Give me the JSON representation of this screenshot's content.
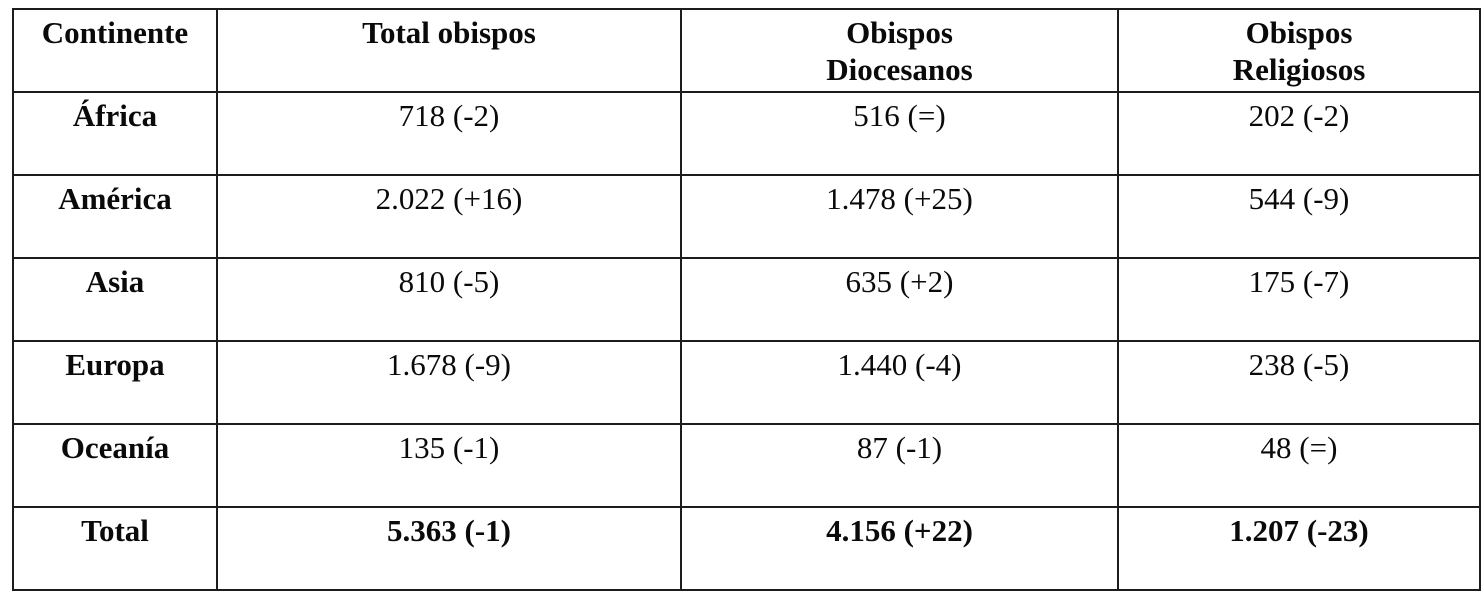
{
  "page": {
    "background_color": "#ffffff",
    "border_color": "#1c1c1c"
  },
  "table": {
    "headers": [
      {
        "label": "Continente"
      },
      {
        "label": "Total obispos"
      },
      {
        "label": "Obispos\nDiocesanos"
      },
      {
        "label": "Obispos\nReligiosos"
      }
    ],
    "rows": [
      {
        "continent": "África",
        "total": "718 (-2)",
        "diocesanos": "516 (=)",
        "religiosos": "202 (-2)"
      },
      {
        "continent": "América",
        "total": "2.022 (+16)",
        "diocesanos": "1.478 (+25)",
        "religiosos": "544 (-9)"
      },
      {
        "continent": "Asia",
        "total": "810 (-5)",
        "diocesanos": "635 (+2)",
        "religiosos": "175 (-7)"
      },
      {
        "continent": "Europa",
        "total": "1.678 (-9)",
        "diocesanos": "1.440 (-4)",
        "religiosos": "238 (-5)"
      },
      {
        "continent": "Oceanía",
        "total": "135 (-1)",
        "diocesanos": "87 (-1)",
        "religiosos": "48 (=)"
      }
    ],
    "total_row": {
      "label": "Total",
      "total": "5.363 (-1)",
      "diocesanos": "4.156 (+22)",
      "religiosos": "1.207 (-23)"
    }
  }
}
